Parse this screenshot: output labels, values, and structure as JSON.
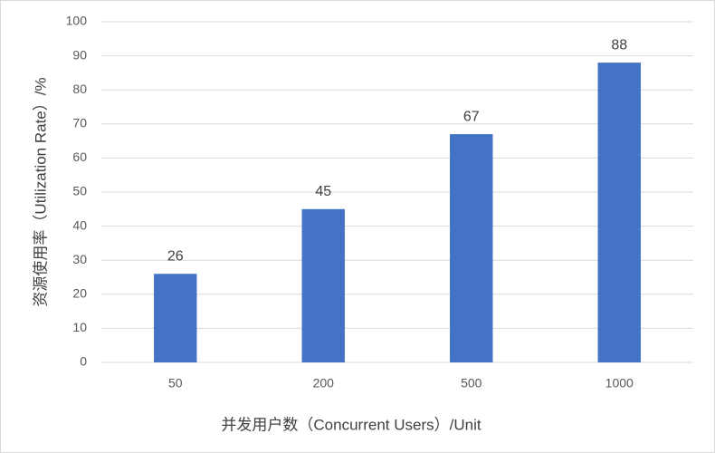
{
  "chart_data": {
    "type": "bar",
    "categories": [
      "50",
      "200",
      "500",
      "1000"
    ],
    "values": [
      26,
      45,
      67,
      88
    ],
    "color": "#4472c4",
    "xlabel": "并发用户数（Concurrent Users）/Unit",
    "ylabel": "资源使用率（Utilization Rate）/%",
    "ylim": [
      0,
      100
    ],
    "yticks": [
      0,
      10,
      20,
      30,
      40,
      50,
      60,
      70,
      80,
      90,
      100
    ],
    "grid": true
  }
}
